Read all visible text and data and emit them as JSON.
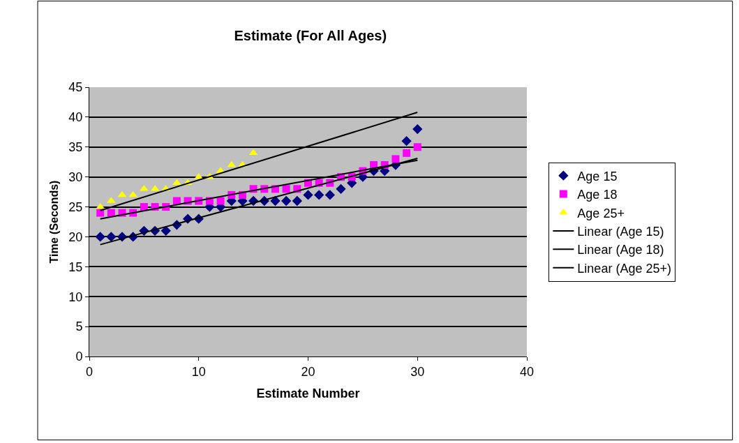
{
  "chart_data": {
    "type": "scatter",
    "title": "Estimate (For All Ages)",
    "xlabel": "Estimate Number",
    "ylabel": "Time (Seconds)",
    "xlim": [
      0,
      40
    ],
    "xticks": [
      0,
      10,
      20,
      30,
      40
    ],
    "ylim": [
      0,
      45
    ],
    "yticks": [
      0,
      5,
      10,
      15,
      20,
      25,
      30,
      35,
      40,
      45
    ],
    "grid": "y",
    "legend": "right",
    "series": [
      {
        "name": "Age 15",
        "color": "#000080",
        "marker": "diamond",
        "x": [
          1,
          2,
          3,
          4,
          5,
          6,
          7,
          8,
          9,
          10,
          11,
          12,
          13,
          14,
          15,
          16,
          17,
          18,
          19,
          20,
          21,
          22,
          23,
          24,
          25,
          26,
          27,
          28,
          29,
          30
        ],
        "values": [
          20,
          20,
          20,
          20,
          21,
          21,
          21,
          22,
          23,
          23,
          25,
          25,
          26,
          26,
          26,
          26,
          26,
          26,
          26,
          27,
          27,
          27,
          28,
          29,
          30,
          31,
          31,
          32,
          36,
          38
        ]
      },
      {
        "name": "Age 18",
        "color": "#ff00ff",
        "marker": "square",
        "x": [
          1,
          2,
          3,
          4,
          5,
          6,
          7,
          8,
          9,
          10,
          11,
          12,
          13,
          14,
          15,
          16,
          17,
          18,
          19,
          20,
          21,
          22,
          23,
          24,
          25,
          26,
          27,
          28,
          29,
          30
        ],
        "values": [
          24,
          24,
          24,
          24,
          25,
          25,
          25,
          26,
          26,
          26,
          26,
          26,
          27,
          27,
          28,
          28,
          28,
          28,
          28,
          29,
          29,
          29,
          30,
          30,
          31,
          32,
          32,
          33,
          34,
          35
        ]
      },
      {
        "name": "Age 25+",
        "color": "#ffff00",
        "marker": "triangle",
        "x": [
          1,
          2,
          3,
          4,
          5,
          6,
          7,
          8,
          9,
          10,
          11,
          12,
          13,
          14,
          15
        ],
        "values": [
          25,
          26,
          27,
          27,
          28,
          28,
          28,
          29,
          29,
          30,
          30,
          31,
          32,
          32,
          34
        ]
      },
      {
        "name": "Linear (Age 15)",
        "type": "line",
        "color": "#000000",
        "x": [
          1,
          30
        ],
        "values": [
          18.7,
          33.1
        ]
      },
      {
        "name": "Linear (Age 18)",
        "type": "line",
        "color": "#000000",
        "x": [
          1,
          30
        ],
        "values": [
          23.0,
          32.8
        ]
      },
      {
        "name": "Linear (Age 25+)",
        "type": "line",
        "color": "#000000",
        "x": [
          1,
          30
        ],
        "values": [
          24.4,
          40.8
        ]
      }
    ]
  }
}
